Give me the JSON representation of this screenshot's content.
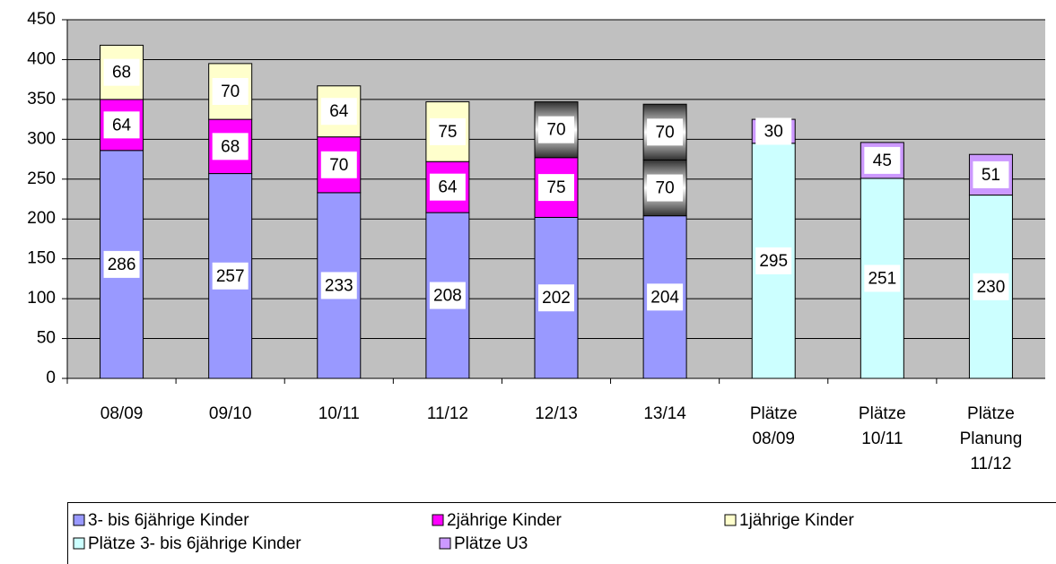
{
  "chart_data": {
    "type": "stacked-bar",
    "categories": [
      "08/09",
      "09/10",
      "10/11",
      "11/12",
      "12/13",
      "13/14",
      "Plätze 08/09",
      "Plätze 10/11",
      "Plätze Planung 11/12"
    ],
    "series": [
      {
        "name": "3- bis 6jährige Kinder",
        "color": "#9999ff",
        "values": [
          286,
          257,
          233,
          208,
          202,
          204,
          null,
          null,
          null
        ]
      },
      {
        "name": "2jährige Kinder",
        "color": "#ff00ff",
        "values": [
          64,
          68,
          70,
          64,
          75,
          70,
          null,
          null,
          null
        ],
        "point_colors": [
          null,
          null,
          null,
          null,
          null,
          "#808080",
          null,
          null,
          null
        ]
      },
      {
        "name": "1jährige Kinder",
        "color": "#ffffcc",
        "values": [
          68,
          70,
          64,
          75,
          70,
          70,
          null,
          null,
          null
        ],
        "point_colors": [
          null,
          null,
          null,
          null,
          "#808080",
          "#808080",
          null,
          null,
          null
        ]
      },
      {
        "name": "Plätze 3- bis 6jährige Kinder",
        "color": "#ccffff",
        "values": [
          null,
          null,
          null,
          null,
          null,
          null,
          295,
          251,
          230
        ]
      },
      {
        "name": "Plätze U3",
        "color": "#cc99ff",
        "values": [
          null,
          null,
          null,
          null,
          null,
          null,
          30,
          45,
          51
        ]
      }
    ],
    "ylim": [
      0,
      450
    ],
    "yticks": [
      0,
      50,
      100,
      150,
      200,
      250,
      300,
      350,
      400,
      450
    ],
    "grid": true,
    "plot_background": "#c0c0c0",
    "legend": "bottom"
  }
}
